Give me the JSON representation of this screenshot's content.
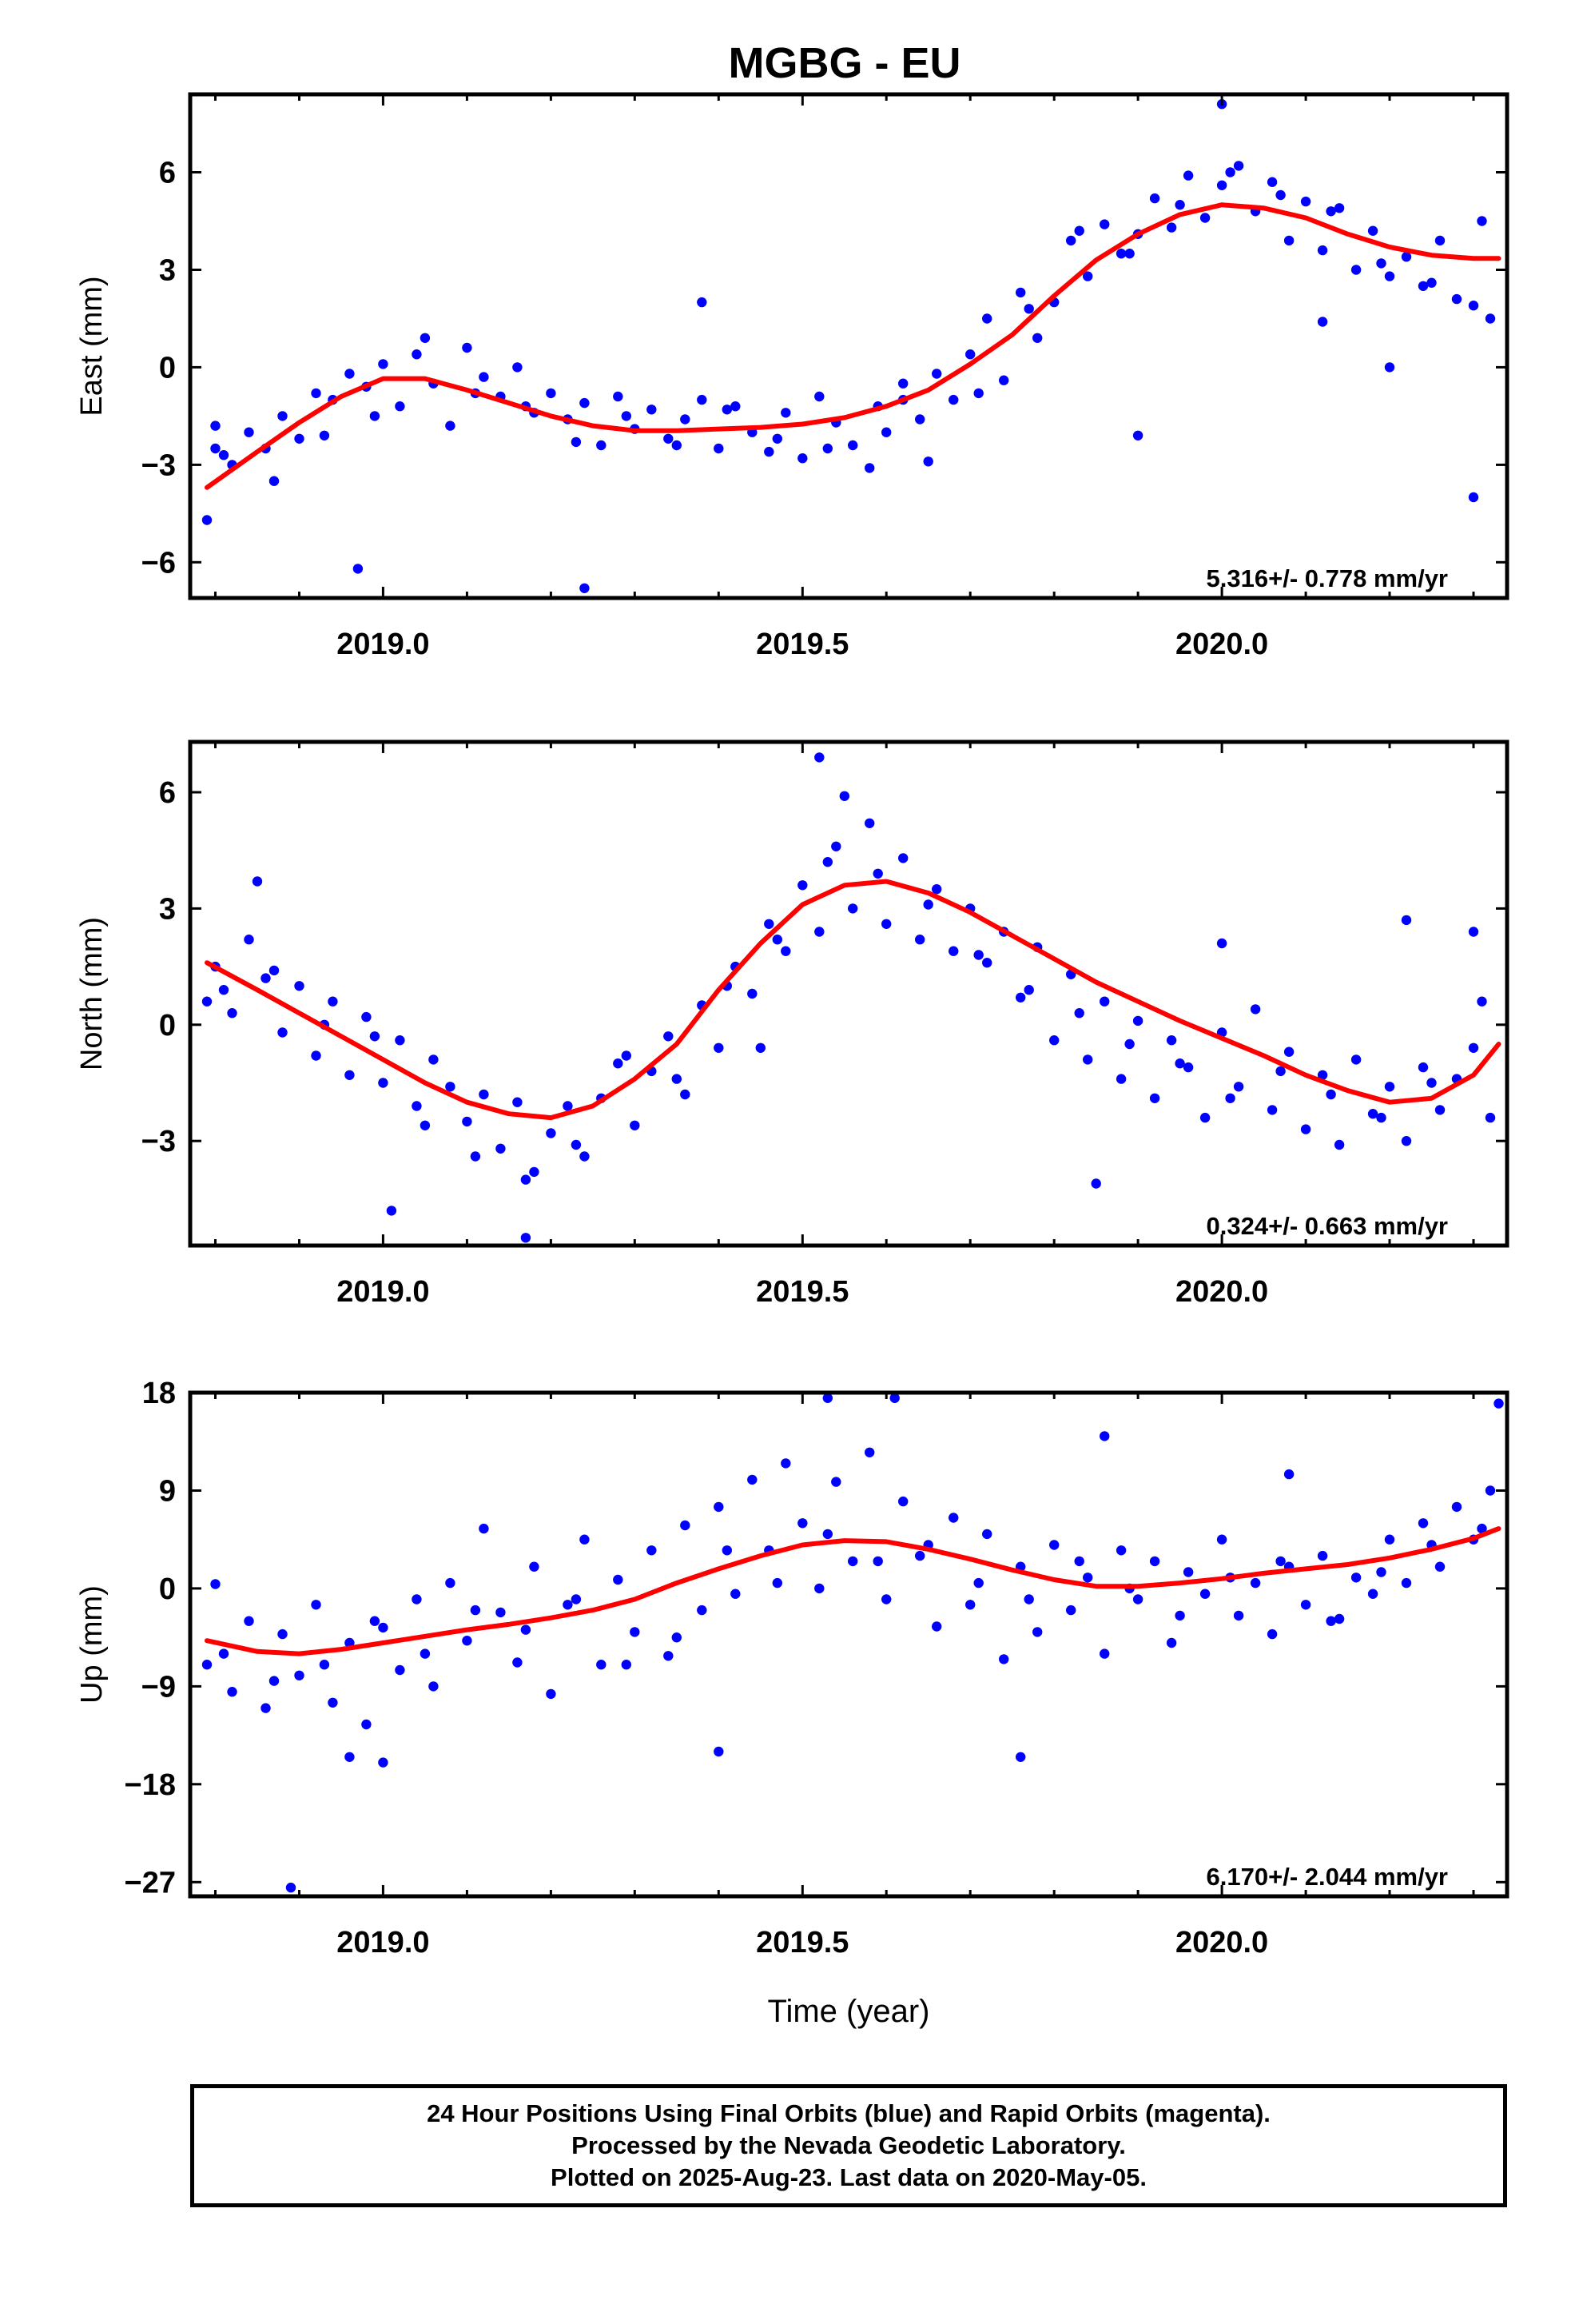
{
  "title": "MGBG - EU",
  "footer": {
    "line1": "24 Hour Positions Using Final Orbits (blue) and Rapid Orbits (magenta).",
    "line2": "Processed by the Nevada Geodetic Laboratory.",
    "line3": "Plotted on 2025-Aug-23. Last data on 2020-May-05."
  },
  "colors": {
    "points": "#0000ff",
    "fit": "#ff0000",
    "axis": "#000000"
  },
  "chart_data": [
    {
      "type": "scatter",
      "ylabel": "East (mm)",
      "xlim": [
        2018.77,
        2020.34
      ],
      "ylim": [
        -7.1,
        8.4
      ],
      "xticks": [
        {
          "v": 2019.0,
          "label": "2019.0"
        },
        {
          "v": 2019.5,
          "label": "2019.5"
        },
        {
          "v": 2020.0,
          "label": "2020.0"
        }
      ],
      "yticks": [
        {
          "v": -6,
          "label": "−6"
        },
        {
          "v": -3,
          "label": "−3"
        },
        {
          "v": 0,
          "label": "0"
        },
        {
          "v": 3,
          "label": "3"
        },
        {
          "v": 6,
          "label": "6"
        }
      ],
      "rate_label": "5.316+/- 0.778 mm/yr",
      "fit": {
        "x": [
          2018.79,
          2018.85,
          2018.9,
          2018.95,
          2019.0,
          2019.05,
          2019.1,
          2019.15,
          2019.2,
          2019.25,
          2019.3,
          2019.35,
          2019.4,
          2019.45,
          2019.5,
          2019.55,
          2019.6,
          2019.65,
          2019.7,
          2019.75,
          2019.8,
          2019.85,
          2019.9,
          2019.95,
          2020.0,
          2020.05,
          2020.1,
          2020.15,
          2020.2,
          2020.25,
          2020.3,
          2020.33
        ],
        "y": [
          -3.7,
          -2.6,
          -1.7,
          -0.9,
          -0.35,
          -0.35,
          -0.7,
          -1.1,
          -1.5,
          -1.8,
          -1.95,
          -1.95,
          -1.9,
          -1.85,
          -1.75,
          -1.55,
          -1.2,
          -0.7,
          0.1,
          1.0,
          2.2,
          3.3,
          4.1,
          4.7,
          5.0,
          4.9,
          4.6,
          4.1,
          3.7,
          3.45,
          3.35,
          3.35
        ]
      },
      "points": {
        "x": [
          2018.79,
          2018.8,
          2018.82,
          2018.84,
          2018.86,
          2018.88,
          2018.9,
          2018.92,
          2018.94,
          2018.96,
          2018.98,
          2019.0,
          2019.02,
          2019.04,
          2019.06,
          2019.08,
          2019.1,
          2019.12,
          2019.14,
          2019.16,
          2019.18,
          2019.2,
          2019.22,
          2019.24,
          2019.26,
          2019.28,
          2019.3,
          2019.32,
          2019.34,
          2019.36,
          2019.38,
          2019.4,
          2019.42,
          2019.44,
          2019.46,
          2019.48,
          2019.5,
          2019.52,
          2019.54,
          2019.56,
          2019.58,
          2019.6,
          2019.62,
          2019.64,
          2019.66,
          2019.68,
          2019.7,
          2019.72,
          2019.74,
          2019.76,
          2019.78,
          2019.8,
          2019.82,
          2019.84,
          2019.86,
          2019.88,
          2019.9,
          2019.92,
          2019.94,
          2019.96,
          2019.98,
          2020.0,
          2020.02,
          2020.04,
          2020.06,
          2020.08,
          2020.1,
          2020.12,
          2020.14,
          2020.16,
          2020.18,
          2020.2,
          2020.22,
          2020.24,
          2020.26,
          2020.28,
          2020.3,
          2020.32,
          2018.81,
          2018.87,
          2018.93,
          2018.99,
          2019.05,
          2019.11,
          2019.17,
          2019.23,
          2019.29,
          2019.35,
          2019.41,
          2019.47,
          2019.53,
          2019.59,
          2019.65,
          2019.71,
          2019.77,
          2019.83,
          2019.89,
          2019.95,
          2020.01,
          2020.07,
          2020.13,
          2020.19,
          2020.25,
          2020.31,
          2018.8,
          2018.97,
          2019.24,
          2019.9,
          2020.0,
          2020.3,
          2020.2,
          2019.38,
          2019.62,
          2020.12
        ],
        "y": [
          -4.7,
          -1.8,
          -3.0,
          -2.0,
          -2.5,
          -1.5,
          -2.2,
          -0.8,
          -1.0,
          -0.2,
          -0.6,
          0.1,
          -1.2,
          0.4,
          -0.5,
          -1.8,
          0.6,
          -0.3,
          -0.9,
          0.0,
          -1.4,
          -0.8,
          -1.6,
          -1.1,
          -2.4,
          -0.9,
          -1.9,
          -1.3,
          -2.2,
          -1.6,
          -1.0,
          -2.5,
          -1.2,
          -2.0,
          -2.6,
          -1.4,
          -2.8,
          -0.9,
          -1.7,
          -2.4,
          -3.1,
          -2.0,
          -0.5,
          -1.6,
          -0.2,
          -1.0,
          0.4,
          1.5,
          -0.4,
          2.3,
          0.9,
          2.0,
          3.9,
          2.8,
          4.4,
          3.5,
          4.1,
          5.2,
          4.3,
          5.9,
          4.6,
          5.6,
          6.2,
          4.8,
          5.7,
          3.9,
          5.1,
          3.6,
          4.9,
          3.0,
          4.2,
          2.8,
          3.4,
          2.5,
          3.9,
          2.1,
          1.9,
          1.5,
          -2.7,
          -3.5,
          -2.1,
          -1.5,
          0.9,
          -0.8,
          -1.2,
          -2.3,
          -1.5,
          -2.4,
          -1.3,
          -2.2,
          -2.5,
          -1.2,
          -2.9,
          -0.8,
          1.8,
          4.2,
          3.5,
          5.0,
          6.0,
          5.3,
          4.8,
          3.2,
          2.6,
          4.5,
          -2.5,
          -6.2,
          -6.8,
          -2.1,
          8.1,
          -4.0,
          0.0,
          2.0,
          -1.0,
          1.4
        ]
      }
    },
    {
      "type": "scatter",
      "ylabel": "North (mm)",
      "xlim": [
        2018.77,
        2020.34
      ],
      "ylim": [
        -5.7,
        7.3
      ],
      "xticks": [
        {
          "v": 2019.0,
          "label": "2019.0"
        },
        {
          "v": 2019.5,
          "label": "2019.5"
        },
        {
          "v": 2020.0,
          "label": "2020.0"
        }
      ],
      "yticks": [
        {
          "v": -3,
          "label": "−3"
        },
        {
          "v": 0,
          "label": "0"
        },
        {
          "v": 3,
          "label": "3"
        },
        {
          "v": 6,
          "label": "6"
        }
      ],
      "rate_label": "0.324+/- 0.663 mm/yr",
      "fit": {
        "x": [
          2018.79,
          2018.85,
          2018.9,
          2018.95,
          2019.0,
          2019.05,
          2019.1,
          2019.15,
          2019.2,
          2019.25,
          2019.3,
          2019.35,
          2019.4,
          2019.45,
          2019.5,
          2019.55,
          2019.6,
          2019.65,
          2019.7,
          2019.75,
          2019.8,
          2019.85,
          2019.9,
          2019.95,
          2020.0,
          2020.05,
          2020.1,
          2020.15,
          2020.2,
          2020.25,
          2020.3,
          2020.33
        ],
        "y": [
          1.6,
          0.9,
          0.3,
          -0.3,
          -0.9,
          -1.5,
          -2.0,
          -2.3,
          -2.4,
          -2.1,
          -1.4,
          -0.5,
          0.9,
          2.1,
          3.1,
          3.6,
          3.7,
          3.4,
          2.9,
          2.3,
          1.7,
          1.1,
          0.6,
          0.1,
          -0.35,
          -0.8,
          -1.3,
          -1.7,
          -2.0,
          -1.9,
          -1.3,
          -0.5
        ]
      },
      "points": {
        "x": [
          2018.79,
          2018.8,
          2018.82,
          2018.84,
          2018.86,
          2018.88,
          2018.9,
          2018.92,
          2018.94,
          2018.96,
          2018.98,
          2019.0,
          2019.02,
          2019.04,
          2019.06,
          2019.08,
          2019.1,
          2019.12,
          2019.14,
          2019.16,
          2019.18,
          2019.2,
          2019.22,
          2019.24,
          2019.26,
          2019.28,
          2019.3,
          2019.32,
          2019.34,
          2019.36,
          2019.38,
          2019.4,
          2019.42,
          2019.44,
          2019.46,
          2019.48,
          2019.5,
          2019.52,
          2019.54,
          2019.56,
          2019.58,
          2019.6,
          2019.62,
          2019.64,
          2019.66,
          2019.68,
          2019.7,
          2019.72,
          2019.74,
          2019.76,
          2019.78,
          2019.8,
          2019.82,
          2019.84,
          2019.86,
          2019.88,
          2019.9,
          2019.92,
          2019.94,
          2019.96,
          2019.98,
          2020.0,
          2020.02,
          2020.04,
          2020.06,
          2020.08,
          2020.1,
          2020.12,
          2020.14,
          2020.16,
          2020.18,
          2020.2,
          2020.22,
          2020.24,
          2020.26,
          2020.28,
          2020.3,
          2020.32,
          2018.81,
          2018.87,
          2018.93,
          2018.99,
          2019.05,
          2019.11,
          2019.17,
          2019.23,
          2019.29,
          2019.35,
          2019.41,
          2019.47,
          2019.53,
          2019.59,
          2019.65,
          2019.71,
          2019.77,
          2019.83,
          2019.89,
          2019.95,
          2020.01,
          2020.07,
          2020.13,
          2020.19,
          2020.25,
          2020.31,
          2018.85,
          2019.17,
          2019.52,
          2019.55,
          2020.0,
          2020.22,
          2020.3,
          2019.01,
          2019.45,
          2019.85
        ],
        "y": [
          0.6,
          1.5,
          0.3,
          2.2,
          1.2,
          -0.2,
          1.0,
          -0.8,
          0.6,
          -1.3,
          0.2,
          -1.5,
          -0.4,
          -2.1,
          -0.9,
          -1.6,
          -2.5,
          -1.8,
          -3.2,
          -2.0,
          -3.8,
          -2.8,
          -2.1,
          -3.4,
          -1.9,
          -1.0,
          -2.6,
          -1.2,
          -0.3,
          -1.8,
          0.5,
          -0.6,
          1.5,
          0.8,
          2.6,
          1.9,
          3.6,
          2.4,
          4.6,
          3.0,
          5.2,
          2.6,
          4.3,
          2.2,
          3.5,
          1.9,
          3.0,
          1.6,
          2.4,
          0.7,
          2.0,
          -0.4,
          1.3,
          -0.9,
          0.6,
          -1.4,
          0.1,
          -1.9,
          -0.4,
          -1.1,
          -2.4,
          -0.2,
          -1.6,
          0.4,
          -2.2,
          -0.7,
          -2.7,
          -1.3,
          -3.1,
          -0.9,
          -2.3,
          -1.6,
          -3.0,
          -1.1,
          -2.2,
          -1.4,
          -0.6,
          -2.4,
          0.9,
          1.4,
          0.0,
          -0.3,
          -2.6,
          -3.4,
          -4.0,
          -3.1,
          -0.8,
          -1.4,
          1.0,
          2.2,
          4.2,
          3.9,
          3.1,
          1.8,
          0.9,
          0.3,
          -0.5,
          -1.0,
          -1.9,
          -1.2,
          -1.8,
          -2.4,
          -1.5,
          0.6,
          3.7,
          -5.5,
          6.9,
          5.9,
          2.1,
          2.7,
          2.4,
          -4.8,
          -0.6,
          -4.1
        ]
      }
    },
    {
      "type": "scatter",
      "xlabel": "Time (year)",
      "ylabel": "Up (mm)",
      "xlim": [
        2018.77,
        2020.34
      ],
      "ylim": [
        -28.3,
        18.0
      ],
      "xticks": [
        {
          "v": 2019.0,
          "label": "2019.0"
        },
        {
          "v": 2019.5,
          "label": "2019.5"
        },
        {
          "v": 2020.0,
          "label": "2020.0"
        }
      ],
      "yticks": [
        {
          "v": -27,
          "label": "−27"
        },
        {
          "v": -18,
          "label": "−18"
        },
        {
          "v": -9,
          "label": "−9"
        },
        {
          "v": 0,
          "label": "0"
        },
        {
          "v": 9,
          "label": "9"
        },
        {
          "v": 18,
          "label": "18"
        }
      ],
      "rate_label": "6.170+/- 2.044 mm/yr",
      "fit": {
        "x": [
          2018.79,
          2018.85,
          2018.9,
          2018.95,
          2019.0,
          2019.05,
          2019.1,
          2019.15,
          2019.2,
          2019.25,
          2019.3,
          2019.35,
          2019.4,
          2019.45,
          2019.5,
          2019.55,
          2019.6,
          2019.65,
          2019.7,
          2019.75,
          2019.8,
          2019.85,
          2019.9,
          2019.95,
          2020.0,
          2020.05,
          2020.1,
          2020.15,
          2020.2,
          2020.25,
          2020.3,
          2020.33
        ],
        "y": [
          -4.8,
          -5.8,
          -6.0,
          -5.6,
          -5.0,
          -4.4,
          -3.8,
          -3.3,
          -2.7,
          -2.0,
          -1.0,
          0.5,
          1.8,
          3.0,
          4.0,
          4.4,
          4.3,
          3.6,
          2.7,
          1.7,
          0.8,
          0.2,
          0.2,
          0.5,
          0.9,
          1.4,
          1.8,
          2.2,
          2.8,
          3.6,
          4.6,
          5.5
        ]
      },
      "points": {
        "x": [
          2018.79,
          2018.8,
          2018.82,
          2018.84,
          2018.86,
          2018.88,
          2018.9,
          2018.92,
          2018.94,
          2018.96,
          2018.98,
          2019.0,
          2019.02,
          2019.04,
          2019.06,
          2019.08,
          2019.1,
          2019.12,
          2019.14,
          2019.16,
          2019.18,
          2019.2,
          2019.22,
          2019.24,
          2019.26,
          2019.28,
          2019.3,
          2019.32,
          2019.34,
          2019.36,
          2019.38,
          2019.4,
          2019.42,
          2019.44,
          2019.46,
          2019.48,
          2019.5,
          2019.52,
          2019.54,
          2019.56,
          2019.58,
          2019.6,
          2019.62,
          2019.64,
          2019.66,
          2019.68,
          2019.7,
          2019.72,
          2019.74,
          2019.76,
          2019.78,
          2019.8,
          2019.82,
          2019.84,
          2019.86,
          2019.88,
          2019.9,
          2019.92,
          2019.94,
          2019.96,
          2019.98,
          2020.0,
          2020.02,
          2020.04,
          2020.06,
          2020.08,
          2020.1,
          2020.12,
          2020.14,
          2020.16,
          2020.18,
          2020.2,
          2020.22,
          2020.24,
          2020.26,
          2020.28,
          2020.3,
          2020.32,
          2018.81,
          2018.87,
          2018.93,
          2018.99,
          2019.05,
          2019.11,
          2019.17,
          2019.23,
          2019.29,
          2019.35,
          2019.41,
          2019.47,
          2019.53,
          2019.59,
          2019.65,
          2019.71,
          2019.77,
          2019.83,
          2019.89,
          2019.95,
          2020.01,
          2020.07,
          2020.13,
          2020.19,
          2020.25,
          2020.31,
          2018.89,
          2018.96,
          2019.0,
          2019.53,
          2019.61,
          2019.76,
          2020.33,
          2019.4,
          2020.08,
          2019.86
        ],
        "y": [
          -7.0,
          0.4,
          -9.5,
          -3.0,
          -11.0,
          -4.2,
          -8.0,
          -1.5,
          -10.5,
          -5.0,
          -12.5,
          -3.6,
          -7.5,
          -1.0,
          -9.0,
          0.5,
          -4.8,
          5.5,
          -2.2,
          -6.8,
          2.0,
          -9.7,
          -1.5,
          4.5,
          -7.0,
          0.8,
          -4.0,
          3.5,
          -6.2,
          5.8,
          -2.0,
          7.5,
          -0.5,
          10.0,
          3.5,
          11.5,
          6.0,
          0.0,
          9.8,
          2.5,
          12.5,
          -1.0,
          8.0,
          3.0,
          -3.5,
          6.5,
          -1.5,
          5.0,
          -6.5,
          2.0,
          -4.0,
          4.0,
          -2.0,
          1.0,
          -6.0,
          3.5,
          -1.0,
          2.5,
          -5.0,
          1.5,
          -0.5,
          4.5,
          -2.5,
          0.5,
          -4.2,
          2.0,
          -1.5,
          3.0,
          -2.8,
          1.0,
          -0.5,
          4.5,
          0.5,
          6.0,
          2.0,
          7.5,
          4.5,
          9.0,
          -6.0,
          -8.5,
          -7.0,
          -3.0,
          -6.0,
          -2.0,
          -3.8,
          -1.0,
          -7.0,
          -4.5,
          3.5,
          0.5,
          5.0,
          2.5,
          4.0,
          0.5,
          -1.0,
          2.5,
          0.0,
          -2.5,
          1.0,
          2.5,
          -3.0,
          1.5,
          4.0,
          5.5,
          -27.5,
          -15.5,
          -16.0,
          17.5,
          17.5,
          -15.5,
          17.0,
          -15.0,
          10.5,
          14.0
        ]
      }
    }
  ]
}
